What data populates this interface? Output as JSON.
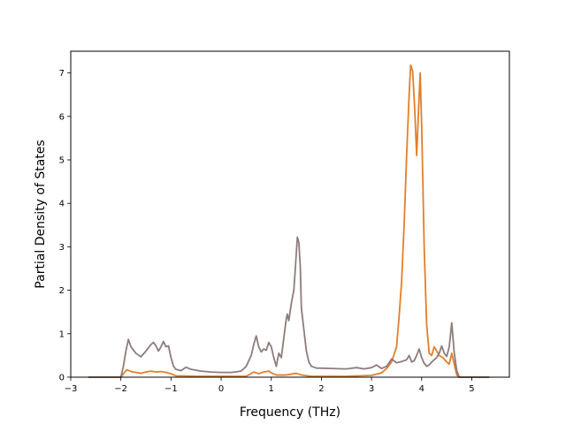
{
  "chart_data": {
    "type": "line",
    "title": "",
    "xlabel": "Frequency (THz)",
    "ylabel": "Partial Density of States",
    "xlim": [
      -3,
      5.75
    ],
    "ylim": [
      0,
      7.5
    ],
    "xticks": [
      -3,
      -2,
      -1,
      0,
      1,
      2,
      3,
      4,
      5
    ],
    "yticks": [
      0,
      1,
      2,
      3,
      4,
      5,
      6,
      7
    ],
    "grid": false,
    "legend": "none",
    "series": [
      {
        "color": "#e37e2a",
        "points": [
          [
            -2.65,
            0
          ],
          [
            -2.0,
            0
          ],
          [
            -1.95,
            0.08
          ],
          [
            -1.88,
            0.17
          ],
          [
            -1.8,
            0.13
          ],
          [
            -1.7,
            0.11
          ],
          [
            -1.6,
            0.09
          ],
          [
            -1.5,
            0.12
          ],
          [
            -1.4,
            0.14
          ],
          [
            -1.3,
            0.12
          ],
          [
            -1.2,
            0.13
          ],
          [
            -1.1,
            0.11
          ],
          [
            -1.0,
            0.08
          ],
          [
            -0.9,
            0.03
          ],
          [
            -0.75,
            0.03
          ],
          [
            -0.5,
            0.02
          ],
          [
            0,
            0.02
          ],
          [
            0.5,
            0.02
          ],
          [
            0.65,
            0.12
          ],
          [
            0.75,
            0.08
          ],
          [
            0.85,
            0.12
          ],
          [
            0.95,
            0.14
          ],
          [
            1.0,
            0.1
          ],
          [
            1.1,
            0.05
          ],
          [
            1.3,
            0.05
          ],
          [
            1.5,
            0.09
          ],
          [
            1.6,
            0.05
          ],
          [
            1.8,
            0.02
          ],
          [
            2.5,
            0.02
          ],
          [
            3.0,
            0.04
          ],
          [
            3.2,
            0.1
          ],
          [
            3.3,
            0.2
          ],
          [
            3.4,
            0.35
          ],
          [
            3.5,
            0.7
          ],
          [
            3.55,
            1.4
          ],
          [
            3.6,
            2.2
          ],
          [
            3.65,
            3.5
          ],
          [
            3.7,
            5.1
          ],
          [
            3.75,
            6.5
          ],
          [
            3.78,
            7.18
          ],
          [
            3.82,
            7.05
          ],
          [
            3.86,
            6.2
          ],
          [
            3.9,
            5.1
          ],
          [
            3.94,
            6.2
          ],
          [
            3.97,
            7.0
          ],
          [
            4.0,
            5.8
          ],
          [
            4.05,
            3.0
          ],
          [
            4.1,
            1.2
          ],
          [
            4.15,
            0.55
          ],
          [
            4.2,
            0.5
          ],
          [
            4.25,
            0.7
          ],
          [
            4.3,
            0.6
          ],
          [
            4.35,
            0.5
          ],
          [
            4.42,
            0.45
          ],
          [
            4.5,
            0.35
          ],
          [
            4.55,
            0.3
          ],
          [
            4.6,
            0.55
          ],
          [
            4.65,
            0.3
          ],
          [
            4.7,
            0.05
          ],
          [
            4.75,
            0
          ],
          [
            5.35,
            0
          ]
        ]
      },
      {
        "color": "#8d7c7c",
        "points": [
          [
            -2.65,
            0
          ],
          [
            -2.0,
            0
          ],
          [
            -1.95,
            0.25
          ],
          [
            -1.9,
            0.6
          ],
          [
            -1.85,
            0.87
          ],
          [
            -1.8,
            0.7
          ],
          [
            -1.7,
            0.55
          ],
          [
            -1.6,
            0.47
          ],
          [
            -1.5,
            0.6
          ],
          [
            -1.4,
            0.75
          ],
          [
            -1.35,
            0.8
          ],
          [
            -1.3,
            0.72
          ],
          [
            -1.25,
            0.6
          ],
          [
            -1.2,
            0.7
          ],
          [
            -1.15,
            0.82
          ],
          [
            -1.1,
            0.7
          ],
          [
            -1.05,
            0.72
          ],
          [
            -1.0,
            0.45
          ],
          [
            -0.95,
            0.25
          ],
          [
            -0.9,
            0.18
          ],
          [
            -0.8,
            0.15
          ],
          [
            -0.7,
            0.23
          ],
          [
            -0.6,
            0.18
          ],
          [
            -0.4,
            0.14
          ],
          [
            -0.2,
            0.12
          ],
          [
            0,
            0.11
          ],
          [
            0.2,
            0.11
          ],
          [
            0.4,
            0.14
          ],
          [
            0.5,
            0.25
          ],
          [
            0.6,
            0.5
          ],
          [
            0.65,
            0.75
          ],
          [
            0.7,
            0.95
          ],
          [
            0.75,
            0.7
          ],
          [
            0.8,
            0.58
          ],
          [
            0.85,
            0.65
          ],
          [
            0.9,
            0.62
          ],
          [
            0.95,
            0.8
          ],
          [
            1.0,
            0.7
          ],
          [
            1.05,
            0.45
          ],
          [
            1.1,
            0.25
          ],
          [
            1.15,
            0.55
          ],
          [
            1.2,
            0.45
          ],
          [
            1.25,
            0.9
          ],
          [
            1.3,
            1.35
          ],
          [
            1.32,
            1.45
          ],
          [
            1.35,
            1.3
          ],
          [
            1.4,
            1.7
          ],
          [
            1.45,
            2.0
          ],
          [
            1.48,
            2.5
          ],
          [
            1.52,
            3.22
          ],
          [
            1.55,
            3.1
          ],
          [
            1.58,
            2.5
          ],
          [
            1.6,
            1.6
          ],
          [
            1.65,
            1.1
          ],
          [
            1.7,
            0.6
          ],
          [
            1.75,
            0.35
          ],
          [
            1.8,
            0.25
          ],
          [
            1.9,
            0.21
          ],
          [
            2.2,
            0.2
          ],
          [
            2.5,
            0.19
          ],
          [
            2.7,
            0.22
          ],
          [
            2.85,
            0.19
          ],
          [
            3.0,
            0.22
          ],
          [
            3.1,
            0.28
          ],
          [
            3.2,
            0.2
          ],
          [
            3.3,
            0.25
          ],
          [
            3.4,
            0.42
          ],
          [
            3.5,
            0.33
          ],
          [
            3.6,
            0.36
          ],
          [
            3.7,
            0.4
          ],
          [
            3.75,
            0.5
          ],
          [
            3.8,
            0.35
          ],
          [
            3.85,
            0.38
          ],
          [
            3.9,
            0.5
          ],
          [
            3.95,
            0.65
          ],
          [
            4.0,
            0.45
          ],
          [
            4.05,
            0.32
          ],
          [
            4.1,
            0.25
          ],
          [
            4.15,
            0.28
          ],
          [
            4.2,
            0.35
          ],
          [
            4.3,
            0.45
          ],
          [
            4.35,
            0.55
          ],
          [
            4.4,
            0.72
          ],
          [
            4.45,
            0.55
          ],
          [
            4.5,
            0.48
          ],
          [
            4.55,
            0.7
          ],
          [
            4.6,
            1.25
          ],
          [
            4.65,
            0.55
          ],
          [
            4.7,
            0.15
          ],
          [
            4.75,
            0
          ],
          [
            5.35,
            0
          ]
        ]
      }
    ]
  }
}
